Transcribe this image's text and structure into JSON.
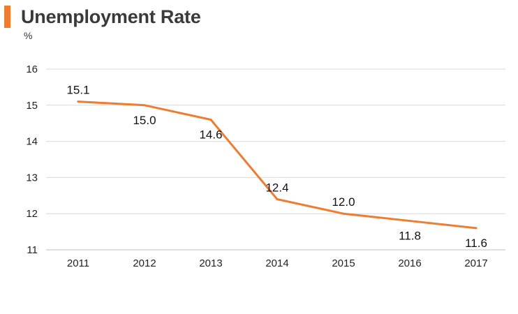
{
  "chart_data": {
    "type": "line",
    "title": "Unemployment Rate",
    "ylabel": "%",
    "xlabel": "",
    "categories": [
      "2011",
      "2012",
      "2013",
      "2014",
      "2015",
      "2016",
      "2017"
    ],
    "series": [
      {
        "values": [
          15.1,
          15.0,
          14.6,
          12.4,
          12.0,
          11.8,
          11.6
        ],
        "data_labels": [
          "15.1",
          "15.0",
          "14.6",
          "12.4",
          "12.0",
          "11.8",
          "11.6"
        ],
        "data_label_placement": [
          "above",
          "below",
          "below",
          "above",
          "above",
          "below",
          "below"
        ]
      }
    ],
    "ylim": [
      11,
      16
    ],
    "yticks": [
      "11",
      "12",
      "13",
      "14",
      "15",
      "16"
    ],
    "grid": "horizontal",
    "legend": "none",
    "colors": {
      "line": "#ed7d31",
      "accent_bar": "#ed7d31",
      "grid": "#d9d9d9",
      "axis": "#bfbfbf"
    }
  }
}
